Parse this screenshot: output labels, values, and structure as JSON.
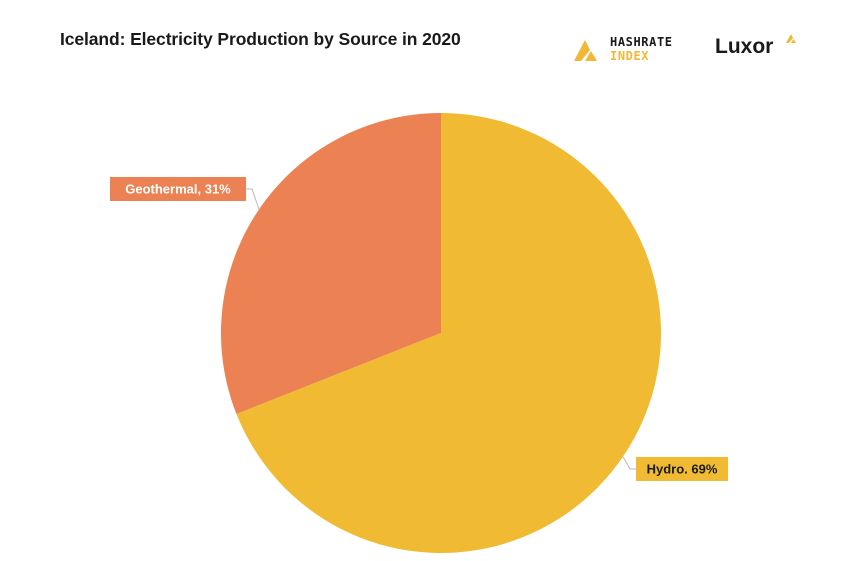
{
  "header": {
    "title": "Iceland: Electricity Production by Source in 2020"
  },
  "logos": {
    "hashrate_line1": "HASHRATE",
    "hashrate_line2": "INDEX",
    "luxor": "Luxor",
    "hashrate_mark_icon": "hashrate-index-mark-icon",
    "luxor_mark_icon": "luxor-mark-icon"
  },
  "colors": {
    "hydro": "#f0bb32",
    "geothermal": "#ec8253",
    "text": "#1a1a1a",
    "leader": "#bbbbbb"
  },
  "chart_data": {
    "type": "pie",
    "title": "Iceland: Electricity Production by Source in 2020",
    "slices": [
      {
        "name": "Hydro",
        "value": 69,
        "label": "Hydro. 69%",
        "color": "#f0bb32"
      },
      {
        "name": "Geothermal",
        "value": 31,
        "label": "Geothermal, 31%",
        "color": "#ec8253"
      }
    ],
    "legend": "none"
  }
}
